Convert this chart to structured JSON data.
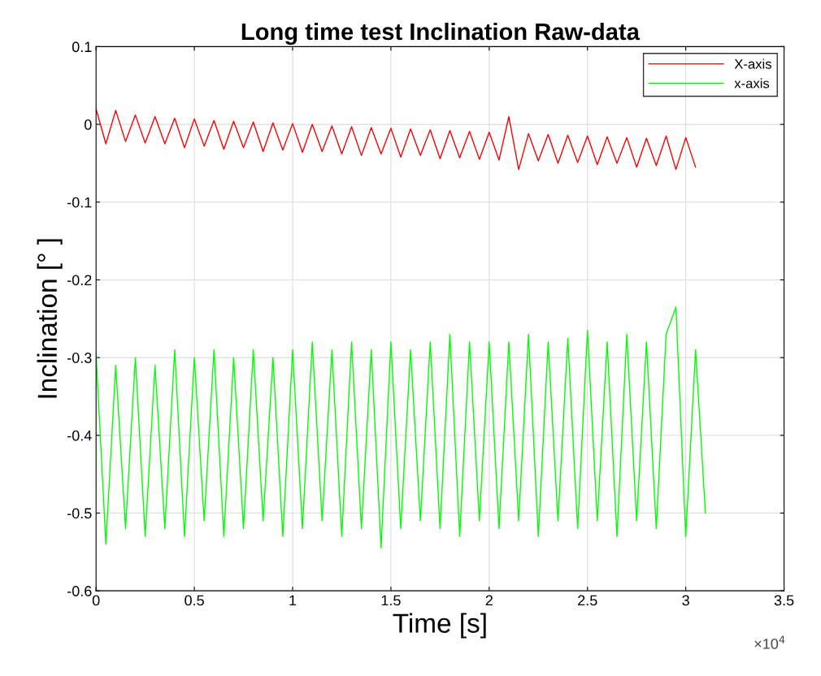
{
  "chart_data": {
    "type": "line",
    "title": "Long time test Inclination Raw-data",
    "xlabel": "Time [s]",
    "ylabel": "Inclination [° ]",
    "xlim": [
      0,
      3.5
    ],
    "xticks": [
      0,
      0.5,
      1,
      1.5,
      2,
      2.5,
      3,
      3.5
    ],
    "ylim": [
      -0.6,
      0.1
    ],
    "yticks": [
      -0.6,
      -0.5,
      -0.4,
      -0.3,
      -0.2,
      -0.1,
      0,
      0.1
    ],
    "grid": true,
    "legend": "top right",
    "annotations": [
      "×10$^{4}$"
    ],
    "series": [
      {
        "name": "X-axis",
        "color": "#ff0000",
        "x": [
          0,
          0.05,
          0.1,
          0.15,
          0.2,
          0.25,
          0.3,
          0.35,
          0.4,
          0.45,
          0.5,
          0.55,
          0.6,
          0.65,
          0.7,
          0.75,
          0.8,
          0.85,
          0.9,
          0.95,
          1,
          1.05,
          1.1,
          1.15,
          1.2,
          1.25,
          1.3,
          1.35,
          1.4,
          1.45,
          1.5,
          1.55,
          1.6,
          1.65,
          1.7,
          1.75,
          1.8,
          1.85,
          1.9,
          1.95,
          2,
          2.05,
          2.1,
          2.15,
          2.2,
          2.25,
          2.3,
          2.35,
          2.4,
          2.45,
          2.5,
          2.55,
          2.6,
          2.65,
          2.7,
          2.75,
          2.8,
          2.85,
          2.9,
          2.95,
          3,
          3.05
        ],
        "values": [
          0.02,
          -0.025,
          0.018,
          -0.022,
          0.012,
          -0.024,
          0.01,
          -0.025,
          0.008,
          -0.03,
          0.007,
          -0.028,
          0.005,
          -0.032,
          0.004,
          -0.03,
          0.003,
          -0.035,
          0.002,
          -0.033,
          0.001,
          -0.036,
          0.0,
          -0.035,
          -0.002,
          -0.038,
          -0.003,
          -0.04,
          -0.004,
          -0.038,
          -0.005,
          -0.042,
          -0.006,
          -0.04,
          -0.007,
          -0.044,
          -0.008,
          -0.043,
          -0.009,
          -0.045,
          -0.01,
          -0.046,
          0.01,
          -0.058,
          -0.012,
          -0.047,
          -0.013,
          -0.05,
          -0.014,
          -0.049,
          -0.015,
          -0.052,
          -0.016,
          -0.05,
          -0.017,
          -0.055,
          -0.018,
          -0.053,
          -0.015,
          -0.058,
          -0.017,
          -0.055
        ]
      },
      {
        "name": "x-axis",
        "color": "#00ff00",
        "x": [
          0,
          0.05,
          0.1,
          0.15,
          0.2,
          0.25,
          0.3,
          0.35,
          0.4,
          0.45,
          0.5,
          0.55,
          0.6,
          0.65,
          0.7,
          0.75,
          0.8,
          0.85,
          0.9,
          0.95,
          1,
          1.05,
          1.1,
          1.15,
          1.2,
          1.25,
          1.3,
          1.35,
          1.4,
          1.45,
          1.5,
          1.55,
          1.6,
          1.65,
          1.7,
          1.75,
          1.8,
          1.85,
          1.9,
          1.95,
          2,
          2.05,
          2.1,
          2.15,
          2.2,
          2.25,
          2.3,
          2.35,
          2.4,
          2.45,
          2.5,
          2.55,
          2.6,
          2.65,
          2.7,
          2.75,
          2.8,
          2.85,
          2.9,
          2.95,
          3,
          3.05,
          3.1
        ],
        "values": [
          -0.295,
          -0.54,
          -0.31,
          -0.52,
          -0.3,
          -0.53,
          -0.31,
          -0.52,
          -0.29,
          -0.53,
          -0.3,
          -0.51,
          -0.29,
          -0.53,
          -0.3,
          -0.52,
          -0.29,
          -0.51,
          -0.3,
          -0.53,
          -0.29,
          -0.52,
          -0.28,
          -0.51,
          -0.29,
          -0.53,
          -0.28,
          -0.52,
          -0.29,
          -0.545,
          -0.28,
          -0.52,
          -0.29,
          -0.51,
          -0.28,
          -0.52,
          -0.27,
          -0.53,
          -0.28,
          -0.51,
          -0.28,
          -0.52,
          -0.28,
          -0.51,
          -0.27,
          -0.53,
          -0.28,
          -0.51,
          -0.275,
          -0.52,
          -0.265,
          -0.51,
          -0.28,
          -0.53,
          -0.27,
          -0.51,
          -0.28,
          -0.52,
          -0.27,
          -0.235,
          -0.53,
          -0.29,
          -0.5
        ]
      }
    ]
  }
}
